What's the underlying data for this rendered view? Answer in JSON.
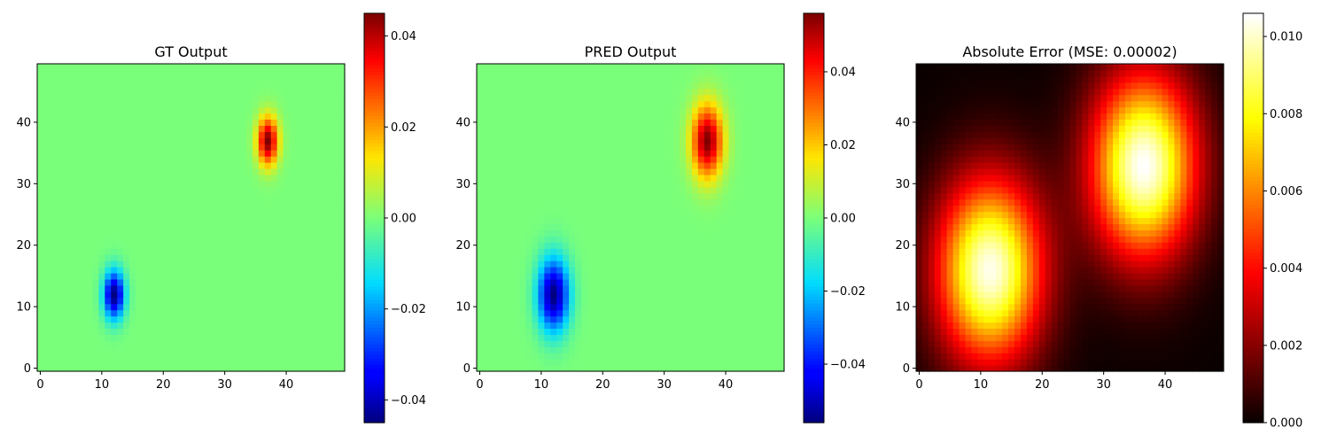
{
  "chart_data": [
    {
      "type": "heatmap",
      "title": "GT Output",
      "grid_size": [
        50,
        50
      ],
      "colormap": "jet",
      "xlim": [
        -0.5,
        49.5
      ],
      "ylim": [
        -0.5,
        49.5
      ],
      "x_ticks": [
        0,
        10,
        20,
        30,
        40
      ],
      "y_ticks": [
        0,
        10,
        20,
        30,
        40
      ],
      "colorbar": {
        "range": [
          -0.045,
          0.045
        ],
        "ticks": [
          -0.04,
          -0.02,
          0.0,
          0.02,
          0.04
        ]
      },
      "features": [
        {
          "center": [
            12,
            12
          ],
          "peak": -0.045,
          "sigma": [
            1.2,
            2.8
          ]
        },
        {
          "center": [
            37,
            37
          ],
          "peak": 0.045,
          "sigma": [
            1.2,
            2.8
          ]
        }
      ],
      "grid": false
    },
    {
      "type": "heatmap",
      "title": "PRED Output",
      "grid_size": [
        50,
        50
      ],
      "colormap": "jet",
      "xlim": [
        -0.5,
        49.5
      ],
      "ylim": [
        -0.5,
        49.5
      ],
      "x_ticks": [
        0,
        10,
        20,
        30,
        40
      ],
      "y_ticks": [
        0,
        10,
        20,
        30,
        40
      ],
      "colorbar": {
        "range": [
          -0.056,
          0.056
        ],
        "ticks": [
          -0.04,
          -0.02,
          0.0,
          0.02,
          0.04
        ]
      },
      "features": [
        {
          "center": [
            12,
            12
          ],
          "peak": -0.056,
          "sigma": [
            1.8,
            4.2
          ]
        },
        {
          "center": [
            37,
            37
          ],
          "peak": 0.056,
          "sigma": [
            1.8,
            4.2
          ]
        }
      ],
      "grid": false
    },
    {
      "type": "heatmap",
      "title": "Absolute Error (MSE: 0.00002)",
      "grid_size": [
        50,
        50
      ],
      "colormap": "hot",
      "xlim": [
        -0.5,
        49.5
      ],
      "ylim": [
        -0.5,
        49.5
      ],
      "x_ticks": [
        0,
        10,
        20,
        30,
        40
      ],
      "y_ticks": [
        0,
        10,
        20,
        30,
        40
      ],
      "colorbar": {
        "range": [
          0.0,
          0.0106
        ],
        "ticks": [
          0.0,
          0.002,
          0.004,
          0.006,
          0.008,
          0.01
        ]
      },
      "features": [
        {
          "center": [
            11.5,
            16
          ],
          "peak": 0.0104,
          "sigma": [
            6.0,
            10.5
          ]
        },
        {
          "center": [
            36.5,
            33
          ],
          "peak": 0.0106,
          "sigma": [
            6.0,
            10.5
          ]
        }
      ],
      "grid": false
    }
  ]
}
